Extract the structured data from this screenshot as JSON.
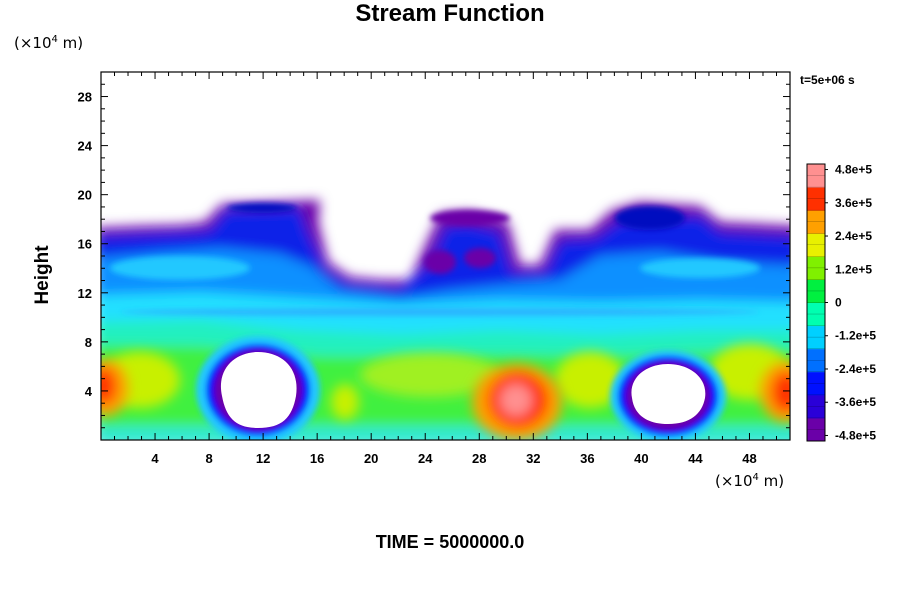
{
  "chart_data": {
    "type": "heatmap",
    "title": "Stream Function",
    "ylabel": "Height",
    "x_unit_prefix": "(×10",
    "unit_exponent": "4",
    "unit_suffix": " m)",
    "time_note": "t=5e+06 s",
    "footer": "TIME = 5000000.0",
    "xlim": [
      0,
      51
    ],
    "ylim": [
      0,
      30
    ],
    "x_ticks": [
      "4",
      "8",
      "12",
      "16",
      "20",
      "24",
      "28",
      "32",
      "36",
      "40",
      "44",
      "48"
    ],
    "x_tick_values": [
      4,
      8,
      12,
      16,
      20,
      24,
      28,
      32,
      36,
      40,
      44,
      48
    ],
    "y_ticks": [
      "4",
      "8",
      "12",
      "16",
      "20",
      "24",
      "28"
    ],
    "y_tick_values": [
      4,
      8,
      12,
      16,
      20,
      24,
      28
    ],
    "colorbar": {
      "range": [
        -500000.0,
        500000.0
      ],
      "labels": [
        "4.8e+5",
        "3.6e+5",
        "2.4e+5",
        "1.2e+5",
        "0",
        "-1.2e+5",
        "-2.4e+5",
        "-3.6e+5",
        "-4.8e+5"
      ],
      "label_values": [
        480000,
        360000,
        240000,
        120000,
        0,
        -120000,
        -240000,
        -360000,
        -480000
      ],
      "colors": [
        "#6a00a8",
        "#2a00d8",
        "#0010ff",
        "#0070ff",
        "#00d0ff",
        "#00ffb0",
        "#00f040",
        "#80f000",
        "#e8f000",
        "#ffa000",
        "#ff3000",
        "#ff9090"
      ]
    },
    "features": [
      {
        "label": "white gap (|psi| > range)",
        "x_center": 12.3,
        "y_center": 4.2,
        "color": "#ffffff"
      },
      {
        "label": "white gap (|psi| > range)",
        "x_center": 42.0,
        "y_center": 3.6,
        "color": "#ffffff"
      },
      {
        "label": "positive maximum",
        "x_center": 30.5,
        "y_center": 3.6,
        "color": "#ff9090"
      },
      {
        "label": "positive maximum",
        "x_center": 0.8,
        "y_center": 4.3,
        "color": "#ff4000"
      },
      {
        "label": "positive maximum",
        "x_center": 50.2,
        "y_center": 4.0,
        "color": "#ff4000"
      }
    ]
  }
}
